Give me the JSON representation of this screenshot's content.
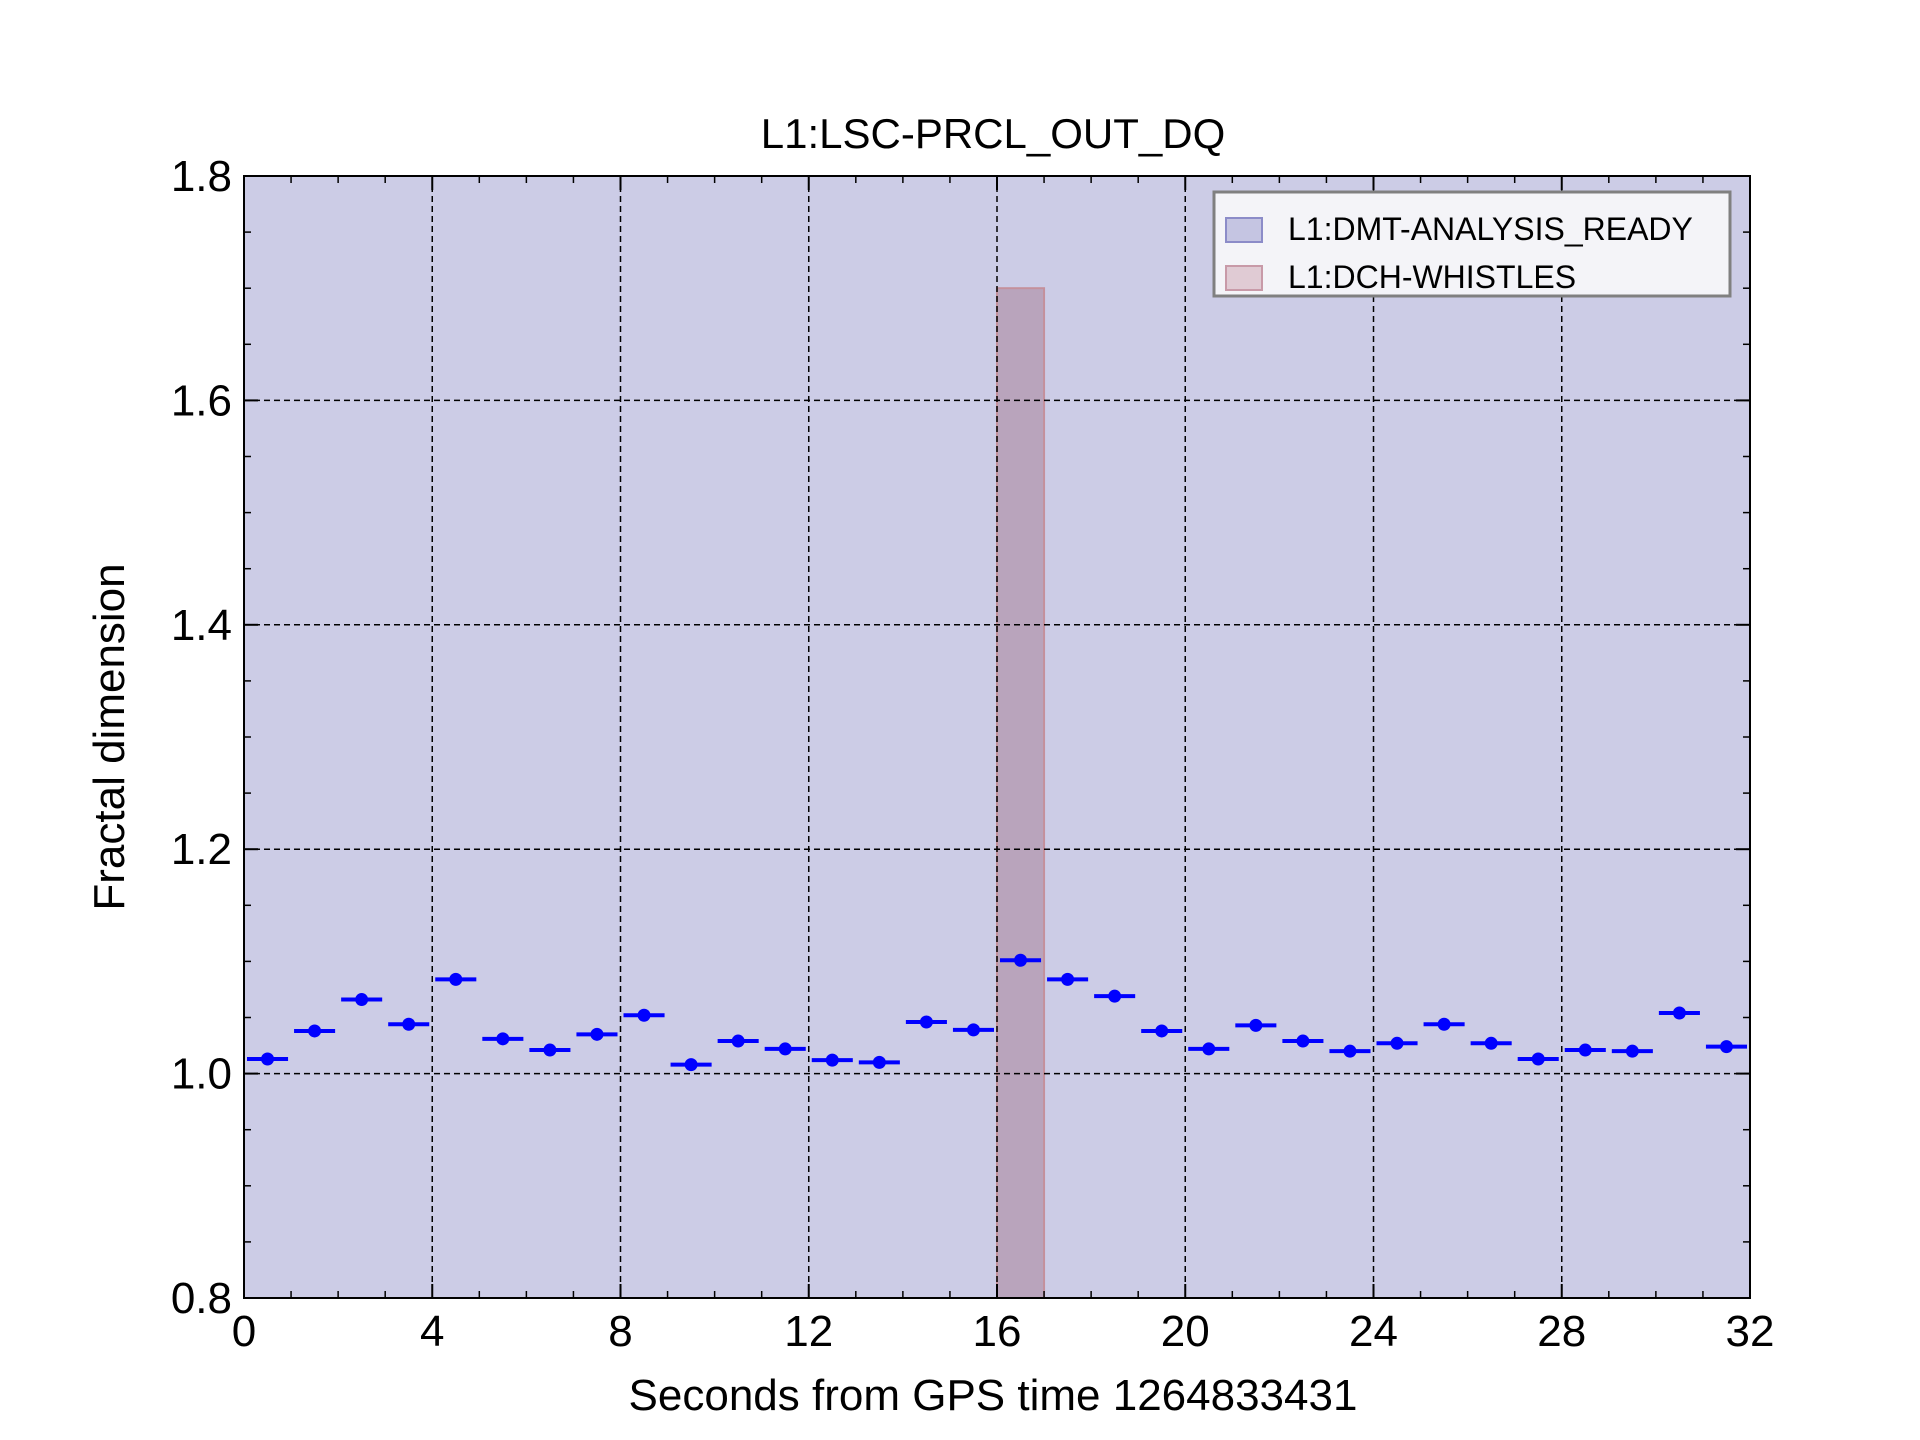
{
  "chart_data": {
    "type": "scatter",
    "title": "L1:LSC-PRCL_OUT_DQ",
    "xlabel": "Seconds from GPS time 1264833431",
    "ylabel": "Fractal dimension",
    "xlim": [
      0,
      32
    ],
    "ylim": [
      0.8,
      1.8
    ],
    "xticks": [
      "0",
      "4",
      "8",
      "12",
      "16",
      "20",
      "24",
      "28",
      "32"
    ],
    "yticks": [
      "0.8",
      "1.0",
      "1.2",
      "1.4",
      "1.6",
      "1.8"
    ],
    "grid": true,
    "legend_position": "top-right",
    "legend": [
      {
        "label": "L1:DMT-ANALYSIS_READY",
        "color": "#8c8cc8"
      },
      {
        "label": "L1:DCH-WHISTLES",
        "color": "#c89aa8"
      }
    ],
    "segments": [
      {
        "name": "L1:DMT-ANALYSIS_READY",
        "start": 0,
        "end": 32,
        "ymin": 0.8,
        "ymax": 1.8,
        "color": "#ccccE6"
      },
      {
        "name": "L1:DCH-WHISTLES",
        "start": 16,
        "end": 17,
        "ymin": 0.8,
        "ymax": 1.7,
        "color": "#b9a4bc"
      }
    ],
    "series": [
      {
        "color": "#0000ff",
        "bin_width": 1,
        "x": [
          0.5,
          1.5,
          2.5,
          3.5,
          4.5,
          5.5,
          6.5,
          7.5,
          8.5,
          9.5,
          10.5,
          11.5,
          12.5,
          13.5,
          14.5,
          15.5,
          16.5,
          17.5,
          18.5,
          19.5,
          20.5,
          21.5,
          22.5,
          23.5,
          24.5,
          25.5,
          26.5,
          27.5,
          28.5,
          29.5,
          30.5,
          31.5
        ],
        "y": [
          1.013,
          1.038,
          1.066,
          1.044,
          1.084,
          1.031,
          1.021,
          1.035,
          1.052,
          1.008,
          1.029,
          1.022,
          1.012,
          1.01,
          1.046,
          1.039,
          1.101,
          1.084,
          1.069,
          1.038,
          1.022,
          1.043,
          1.029,
          1.02,
          1.027,
          1.044,
          1.027,
          1.013,
          1.021,
          1.02,
          1.054,
          1.024
        ]
      }
    ]
  }
}
